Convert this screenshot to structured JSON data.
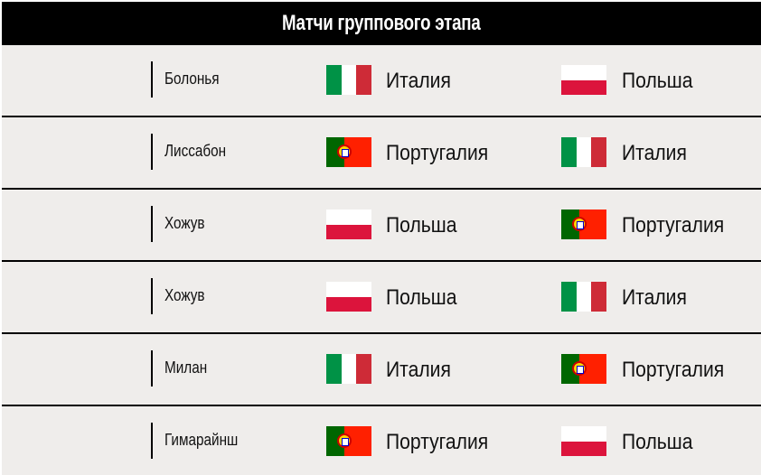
{
  "title": "Матчи группового этапа",
  "colors": {
    "italy": [
      "#009246",
      "#ffffff",
      "#ce2b37"
    ],
    "poland": [
      "#ffffff",
      "#dc143c"
    ],
    "portugal": [
      "#006600",
      "#ff2000"
    ]
  },
  "matches": [
    {
      "city": "Болонья",
      "home": {
        "name": "Италия",
        "flag": "italy"
      },
      "away": {
        "name": "Польша",
        "flag": "poland"
      }
    },
    {
      "city": "Лиссабон",
      "home": {
        "name": "Португалия",
        "flag": "portugal"
      },
      "away": {
        "name": "Италия",
        "flag": "italy"
      }
    },
    {
      "city": "Хожув",
      "home": {
        "name": "Польша",
        "flag": "poland"
      },
      "away": {
        "name": "Португалия",
        "flag": "portugal"
      }
    },
    {
      "city": "Хожув",
      "home": {
        "name": "Польша",
        "flag": "poland"
      },
      "away": {
        "name": "Италия",
        "flag": "italy"
      }
    },
    {
      "city": "Милан",
      "home": {
        "name": "Италия",
        "flag": "italy"
      },
      "away": {
        "name": "Португалия",
        "flag": "portugal"
      }
    },
    {
      "city": "Гимарайнш",
      "home": {
        "name": "Португалия",
        "flag": "portugal"
      },
      "away": {
        "name": "Польша",
        "flag": "poland"
      }
    }
  ]
}
